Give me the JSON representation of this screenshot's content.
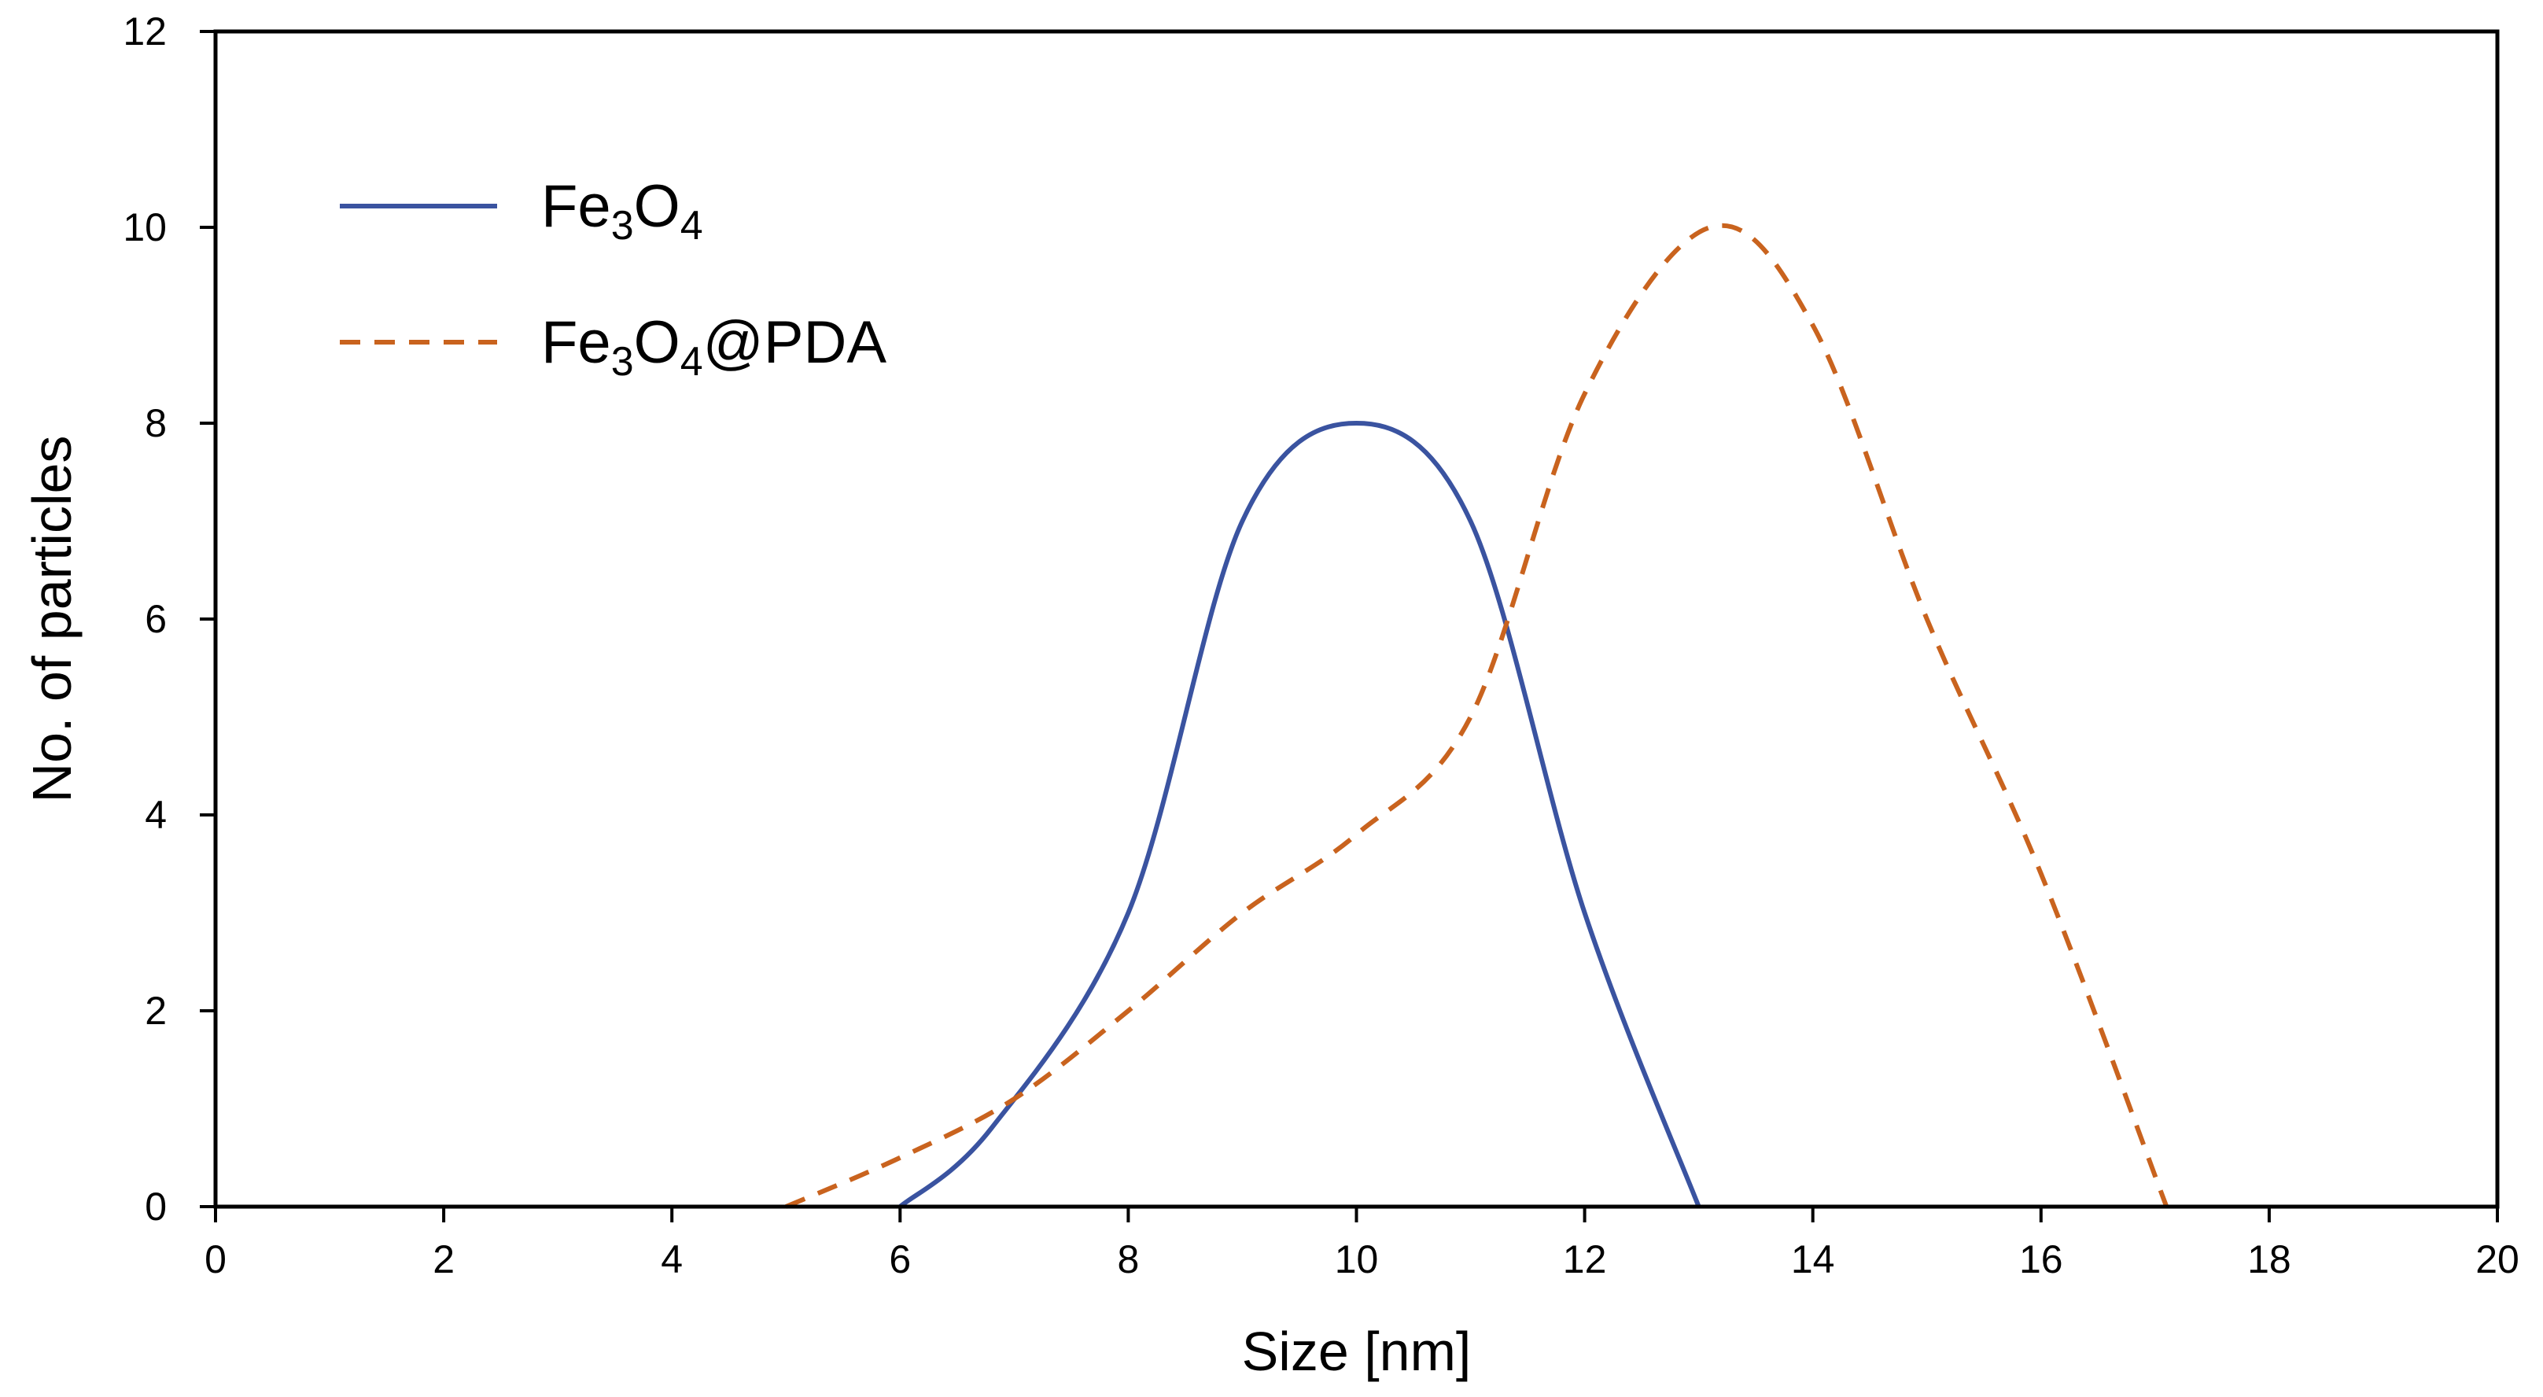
{
  "chart_data": {
    "type": "line",
    "title": "",
    "xlabel": "Size [nm]",
    "ylabel": "No. of particles",
    "xlim": [
      0,
      20
    ],
    "ylim": [
      0,
      12
    ],
    "xticks": [
      0,
      2,
      4,
      6,
      8,
      10,
      12,
      14,
      16,
      18,
      20
    ],
    "yticks": [
      0,
      2,
      4,
      6,
      8,
      10,
      12
    ],
    "xtick_labels": [
      "0",
      "2",
      "4",
      "6",
      "8",
      "10",
      "12",
      "14",
      "16",
      "18",
      "20"
    ],
    "ytick_labels": [
      "0",
      "2",
      "4",
      "6",
      "8",
      "10",
      "12"
    ],
    "grid": false,
    "legend_position": "top-left",
    "series": [
      {
        "name": "Fe3O4",
        "legend_parts": [
          [
            "Fe",
            ""
          ],
          [
            "3",
            "sub"
          ],
          [
            "O",
            ""
          ],
          [
            "4",
            "sub"
          ]
        ],
        "style": "solid",
        "color": "#3a53a0",
        "x": [
          6,
          6.8,
          8,
          9,
          10,
          11,
          12,
          13
        ],
        "y": [
          0,
          0.8,
          3,
          7,
          8,
          7,
          3,
          0
        ]
      },
      {
        "name": "Fe3O4@PDA",
        "legend_parts": [
          [
            "Fe",
            ""
          ],
          [
            "3",
            "sub"
          ],
          [
            "O",
            ""
          ],
          [
            "4",
            "sub"
          ],
          [
            "@PDA",
            ""
          ]
        ],
        "style": "dashed",
        "color": "#c9631e",
        "x": [
          5,
          6,
          7,
          8,
          9,
          10,
          11,
          12,
          13.1,
          14,
          15,
          16,
          17.1
        ],
        "y": [
          0,
          0.5,
          1.1,
          2,
          3,
          3.8,
          5,
          8.3,
          10,
          9,
          6,
          3.4,
          0
        ]
      }
    ]
  }
}
